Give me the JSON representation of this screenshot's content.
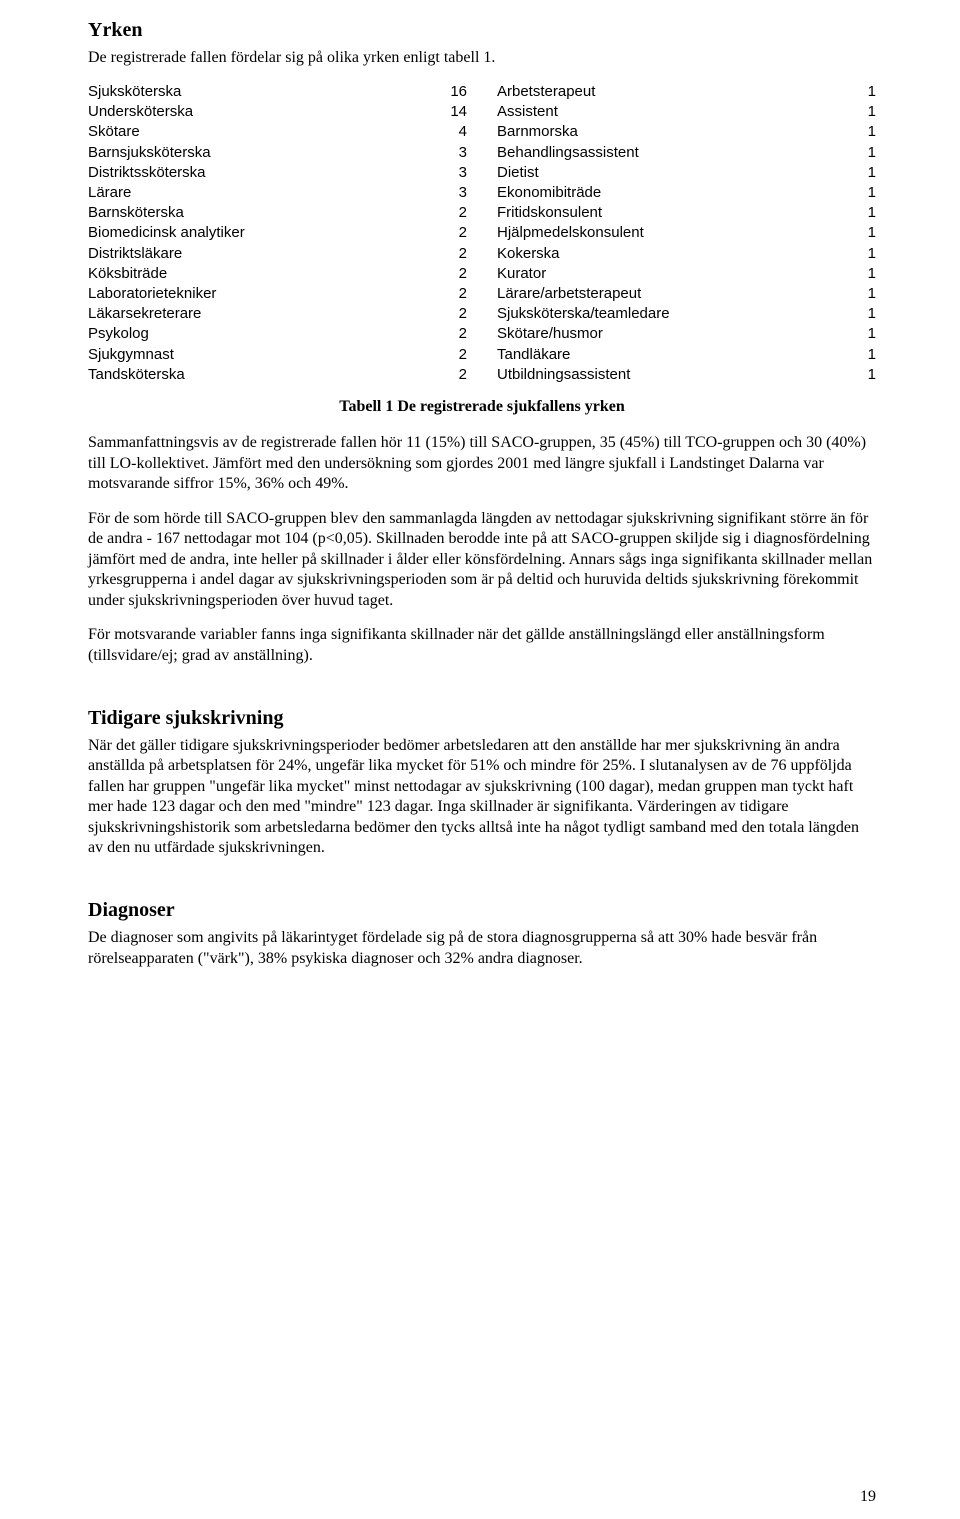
{
  "s1_title": "Yrken",
  "s1_p1": "De registrerade fallen fördelar sig på olika yrken enligt tabell 1.",
  "tbl_left": [
    {
      "label": "Sjuksköterska",
      "n": "16"
    },
    {
      "label": "Undersköterska",
      "n": "14"
    },
    {
      "label": "Skötare",
      "n": "4"
    },
    {
      "label": "Barnsjuksköterska",
      "n": "3"
    },
    {
      "label": "Distriktssköterska",
      "n": "3"
    },
    {
      "label": "Lärare",
      "n": "3"
    },
    {
      "label": "Barnsköterska",
      "n": "2"
    },
    {
      "label": "Biomedicinsk analytiker",
      "n": "2"
    },
    {
      "label": "Distriktsläkare",
      "n": "2"
    },
    {
      "label": "Köksbiträde",
      "n": "2"
    },
    {
      "label": "Laboratorietekniker",
      "n": "2"
    },
    {
      "label": "Läkarsekreterare",
      "n": "2"
    },
    {
      "label": "Psykolog",
      "n": "2"
    },
    {
      "label": "Sjukgymnast",
      "n": "2"
    },
    {
      "label": "Tandsköterska",
      "n": "2"
    }
  ],
  "tbl_right": [
    {
      "label": "Arbetsterapeut",
      "n": "1"
    },
    {
      "label": "Assistent",
      "n": "1"
    },
    {
      "label": "Barnmorska",
      "n": "1"
    },
    {
      "label": "Behandlingsassistent",
      "n": "1"
    },
    {
      "label": "Dietist",
      "n": "1"
    },
    {
      "label": "Ekonomibiträde",
      "n": "1"
    },
    {
      "label": "Fritidskonsulent",
      "n": "1"
    },
    {
      "label": "Hjälpmedelskonsulent",
      "n": "1"
    },
    {
      "label": "Kokerska",
      "n": "1"
    },
    {
      "label": "Kurator",
      "n": "1"
    },
    {
      "label": "Lärare/arbetsterapeut",
      "n": "1"
    },
    {
      "label": "Sjuksköterska/teamledare",
      "n": "1"
    },
    {
      "label": "Skötare/husmor",
      "n": "1"
    },
    {
      "label": "Tandläkare",
      "n": "1"
    },
    {
      "label": "Utbildningsassistent",
      "n": "1"
    }
  ],
  "tbl_caption": "Tabell 1 De registrerade sjukfallens yrken",
  "s1_p2": "Sammanfattningsvis av de registrerade fallen hör 11 (15%) till SACO-gruppen, 35 (45%) till TCO-gruppen och 30 (40%) till LO-kollektivet. Jämfört med den undersökning som gjordes 2001 med längre sjukfall i Landstinget Dalarna var motsvarande siffror 15%, 36% och 49%.",
  "s1_p3": "För de som hörde till SACO-gruppen blev den sammanlagda längden av nettodagar sjukskrivning signifikant större än för de andra - 167 nettodagar mot 104 (p<0,05). Skillnaden berodde inte på att SACO-gruppen skiljde sig i diagnosfördelning jämfört med de andra, inte heller på skillnader i ålder eller könsfördelning. Annars sågs inga signifikanta skillnader mellan yrkesgrupperna i andel dagar av sjukskrivningsperioden som är på deltid och huruvida deltids sjukskrivning förekommit under sjukskrivningsperioden över huvud taget.",
  "s1_p4": "För motsvarande variabler fanns inga signifikanta skillnader när det gällde anställningslängd eller anställningsform (tillsvidare/ej; grad av anställning).",
  "s2_title": "Tidigare sjukskrivning",
  "s2_p1": "När det gäller tidigare sjukskrivningsperioder bedömer arbetsledaren att den anställde har mer sjukskrivning än andra anställda på arbetsplatsen för 24%, ungefär lika mycket för 51% och mindre för 25%. I slutanalysen av de 76 uppföljda fallen har gruppen \"ungefär lika mycket\" minst nettodagar av sjukskrivning (100 dagar), medan gruppen man tyckt haft mer hade 123 dagar och den med \"mindre\" 123 dagar. Inga skillnader är signifikanta. Värderingen av tidigare sjukskrivningshistorik som arbetsledarna bedömer den tycks alltså inte ha något tydligt samband med den totala längden av den nu utfärdade sjukskrivningen.",
  "s3_title": "Diagnoser",
  "s3_p1": "De diagnoser som angivits på läkarintyget fördelade sig på de stora diagnosgrupperna så att 30% hade besvär från rörelseapparaten (\"värk\"), 38% psykiska diagnoser och 32% andra diagnoser.",
  "pagenum": "19"
}
